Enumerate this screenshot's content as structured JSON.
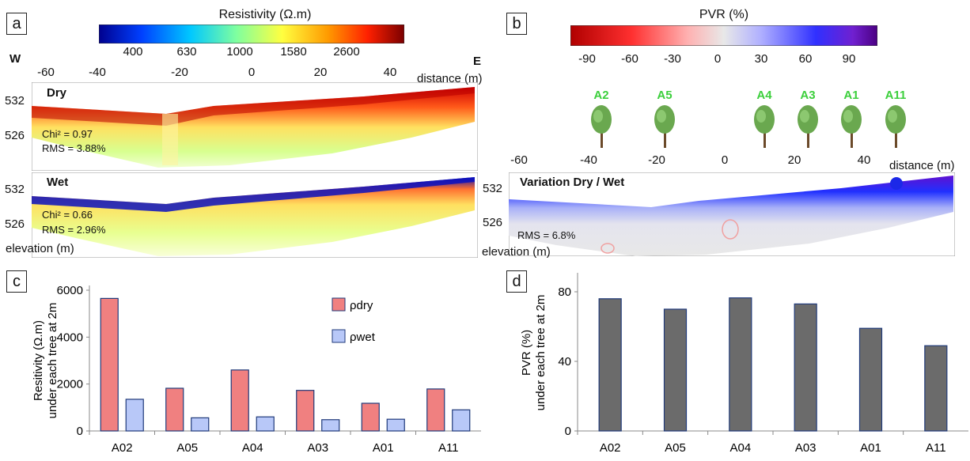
{
  "panels": {
    "a": {
      "letter": "a",
      "colorbar": {
        "title": "Resistivity (Ω.m)",
        "ticks": [
          "400",
          "630",
          "1000",
          "1580",
          "2600"
        ],
        "colors": [
          "#00008f",
          "#0040ff",
          "#00c8ff",
          "#7fff9f",
          "#ffff40",
          "#ff9a00",
          "#ff2000",
          "#7a0000"
        ]
      },
      "west_label": "W",
      "east_label": "E",
      "distance_ticks": [
        "-60",
        "-40",
        "-20",
        "0",
        "20",
        "40"
      ],
      "distance_label": "distance (m)",
      "elevation_label": "elevation (m)",
      "sections": [
        {
          "name": "Dry",
          "elev_ticks": [
            "532",
            "526"
          ],
          "stats": [
            "Chi² = 0.97",
            "RMS = 3.88%"
          ]
        },
        {
          "name": "Wet",
          "elev_ticks": [
            "532",
            "526"
          ],
          "stats": [
            "Chi² = 0.66",
            "RMS = 2.96%"
          ]
        }
      ]
    },
    "b": {
      "letter": "b",
      "colorbar": {
        "title": "PVR (%)",
        "ticks": [
          "-90",
          "-60",
          "-30",
          "0",
          "30",
          "60",
          "90"
        ],
        "colors": [
          "#b00000",
          "#ff3030",
          "#ffb0b0",
          "#e8e8e8",
          "#b0b0ff",
          "#3030ff",
          "#7020d0",
          "#4b0082"
        ]
      },
      "trees": [
        "A2",
        "A5",
        "A4",
        "A3",
        "A1",
        "A11"
      ],
      "tree_label_color": "#3ccf3c",
      "distance_ticks": [
        "-60",
        "-40",
        "-20",
        "0",
        "20",
        "40"
      ],
      "distance_label": "distance (m)",
      "elevation_label": "elevation (m)",
      "section_name": "Variation Dry / Wet",
      "elev_ticks": [
        "532",
        "526"
      ],
      "rms": "RMS = 6.8%"
    },
    "c": {
      "letter": "c"
    },
    "d": {
      "letter": "d"
    }
  },
  "chart_data": [
    {
      "type": "bar",
      "panel": "c",
      "categories": [
        "A02",
        "A05",
        "A04",
        "A03",
        "A01",
        "A11"
      ],
      "series": [
        {
          "name": "ρdry",
          "values": [
            5650,
            1820,
            2600,
            1730,
            1180,
            1790
          ],
          "color": "#f08080"
        },
        {
          "name": "ρwet",
          "values": [
            1350,
            560,
            600,
            480,
            500,
            900
          ],
          "color": "#b8c8f8"
        }
      ],
      "ylabel": "Resitivity (Ω.m)",
      "ylabel2": "under each tree at 2m",
      "ylim": [
        0,
        6000
      ],
      "yticks": [
        0,
        2000,
        4000,
        6000
      ],
      "legend": "top-right"
    },
    {
      "type": "bar",
      "panel": "d",
      "categories": [
        "A02",
        "A05",
        "A04",
        "A03",
        "A01",
        "A11"
      ],
      "series": [
        {
          "values": [
            76,
            70,
            76.5,
            73,
            59,
            49
          ],
          "color": "#6b6b6b"
        }
      ],
      "ylabel": "PVR (%)",
      "ylabel2": "under each tree at 2m",
      "ylim": [
        0,
        90
      ],
      "yticks": [
        0,
        40,
        80
      ]
    }
  ]
}
